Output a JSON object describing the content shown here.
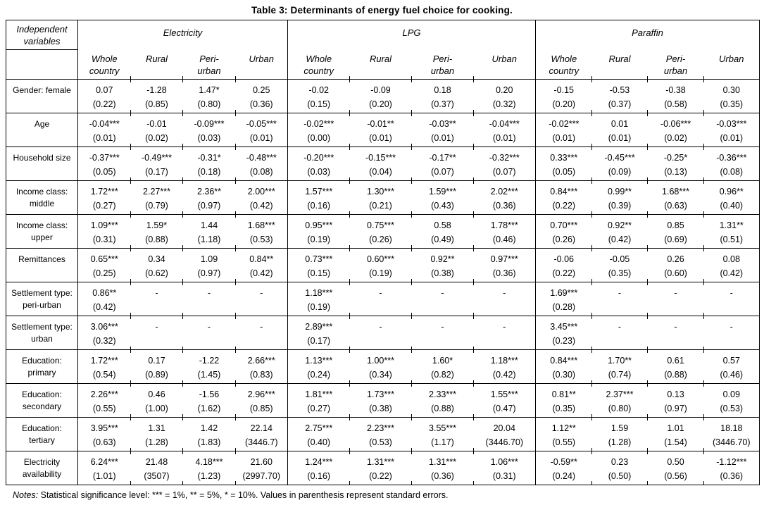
{
  "title": "Table 3: Determinants of energy fuel choice for cooking.",
  "header": {
    "row_label": "Independent\nvariables",
    "groups": [
      {
        "label": "Electricity",
        "columns": [
          "Whole\ncountry",
          "Rural",
          "Peri-\nurban",
          "Urban"
        ]
      },
      {
        "label": "LPG",
        "columns": [
          "Whole\ncountry",
          "Rural",
          "Peri-\nurban",
          "Urban"
        ]
      },
      {
        "label": "Paraffin",
        "columns": [
          "Whole\ncountry",
          "Rural",
          "Peri-\nurban",
          "Urban"
        ]
      }
    ]
  },
  "rows": [
    {
      "label": "Gender: female",
      "cells": [
        [
          "0.07",
          "(0.22)"
        ],
        [
          "-1.28",
          "(0.85)"
        ],
        [
          "1.47*",
          "(0.80)"
        ],
        [
          "0.25",
          "(0.36)"
        ],
        [
          "-0.02",
          "(0.15)"
        ],
        [
          "-0.09",
          "(0.20)"
        ],
        [
          "0.18",
          "(0.37)"
        ],
        [
          "0.20",
          "(0.32)"
        ],
        [
          "-0.15",
          "(0.20)"
        ],
        [
          "-0.53",
          "(0.37)"
        ],
        [
          "-0.38",
          "(0.58)"
        ],
        [
          "0.30",
          "(0.35)"
        ]
      ]
    },
    {
      "label": "Age",
      "cells": [
        [
          "-0.04***",
          "(0.01)"
        ],
        [
          "-0.01",
          "(0.02)"
        ],
        [
          "-0.09***",
          "(0.03)"
        ],
        [
          "-0.05***",
          "(0.01)"
        ],
        [
          "-0.02***",
          "(0.00)"
        ],
        [
          "-0.01**",
          "(0.01)"
        ],
        [
          "-0.03**",
          "(0.01)"
        ],
        [
          "-0.04***",
          "(0.01)"
        ],
        [
          "-0.02***",
          "(0.01)"
        ],
        [
          "0.01",
          "(0.01)"
        ],
        [
          "-0.06***",
          "(0.02)"
        ],
        [
          "-0.03***",
          "(0.01)"
        ]
      ]
    },
    {
      "label": "Household size",
      "cells": [
        [
          "-0.37***",
          "(0.05)"
        ],
        [
          "-0.49***",
          "(0.17)"
        ],
        [
          "-0.31*",
          "(0.18)"
        ],
        [
          "-0.48***",
          "(0.08)"
        ],
        [
          "-0.20***",
          "(0.03)"
        ],
        [
          "-0.15***",
          "(0.04)"
        ],
        [
          "-0.17**",
          "(0.07)"
        ],
        [
          "-0.32***",
          "(0.07)"
        ],
        [
          "0.33***",
          "(0.05)"
        ],
        [
          "-0.45***",
          "(0.09)"
        ],
        [
          "-0.25*",
          "(0.13)"
        ],
        [
          "-0.36***",
          "(0.08)"
        ]
      ]
    },
    {
      "label": "Income class:\nmiddle",
      "cells": [
        [
          "1.72***",
          "(0.27)"
        ],
        [
          "2.27***",
          "(0.79)"
        ],
        [
          "2.36**",
          "(0.97)"
        ],
        [
          "2.00***",
          "(0.42)"
        ],
        [
          "1.57***",
          "(0.16)"
        ],
        [
          "1.30***",
          "(0.21)"
        ],
        [
          "1.59***",
          "(0.43)"
        ],
        [
          "2.02***",
          "(0.36)"
        ],
        [
          "0.84***",
          "(0.22)"
        ],
        [
          "0.99**",
          "(0.39)"
        ],
        [
          "1.68***",
          "(0.63)"
        ],
        [
          "0.96**",
          "(0.40)"
        ]
      ]
    },
    {
      "label": "Income class:\nupper",
      "cells": [
        [
          "1.09***",
          "(0.31)"
        ],
        [
          "1.59*",
          "(0.88)"
        ],
        [
          "1.44",
          "(1.18)"
        ],
        [
          "1.68***",
          "(0.53)"
        ],
        [
          "0.95***",
          "(0.19)"
        ],
        [
          "0.75***",
          "(0.26)"
        ],
        [
          "0.58",
          "(0.49)"
        ],
        [
          "1.78***",
          "(0.46)"
        ],
        [
          "0.70***",
          "(0.26)"
        ],
        [
          "0.92**",
          "(0.42)"
        ],
        [
          "0.85",
          "(0.69)"
        ],
        [
          "1.31**",
          "(0.51)"
        ]
      ]
    },
    {
      "label": "Remittances",
      "cells": [
        [
          "0.65***",
          "(0.25)"
        ],
        [
          "0.34",
          "(0.62)"
        ],
        [
          "1.09",
          "(0.97)"
        ],
        [
          "0.84**",
          "(0.42)"
        ],
        [
          "0.73***",
          "(0.15)"
        ],
        [
          "0.60***",
          "(0.19)"
        ],
        [
          "0.92**",
          "(0.38)"
        ],
        [
          "0.97***",
          "(0.36)"
        ],
        [
          "-0.06",
          "(0.22)"
        ],
        [
          "-0.05",
          "(0.35)"
        ],
        [
          "0.26",
          "(0.60)"
        ],
        [
          "0.08",
          "(0.42)"
        ]
      ]
    },
    {
      "label": "Settlement type:\nperi-urban",
      "cells": [
        [
          "0.86**",
          "(0.42)"
        ],
        [
          "-",
          ""
        ],
        [
          "-",
          ""
        ],
        [
          "-",
          ""
        ],
        [
          "1.18***",
          "(0.19)"
        ],
        [
          "-",
          ""
        ],
        [
          "-",
          ""
        ],
        [
          "-",
          ""
        ],
        [
          "1.69***",
          "(0.28)"
        ],
        [
          "-",
          ""
        ],
        [
          "-",
          ""
        ],
        [
          "-",
          ""
        ]
      ]
    },
    {
      "label": "Settlement type:\nurban",
      "cells": [
        [
          "3.06***",
          "(0.32)"
        ],
        [
          "-",
          ""
        ],
        [
          "-",
          ""
        ],
        [
          "-",
          ""
        ],
        [
          "2.89***",
          "(0.17)"
        ],
        [
          "-",
          ""
        ],
        [
          "-",
          ""
        ],
        [
          "-",
          ""
        ],
        [
          "3.45***",
          "(0.23)"
        ],
        [
          "-",
          ""
        ],
        [
          "-",
          ""
        ],
        [
          "-",
          ""
        ]
      ]
    },
    {
      "label": "Education:\nprimary",
      "cells": [
        [
          "1.72***",
          "(0.54)"
        ],
        [
          "0.17",
          "(0.89)"
        ],
        [
          "-1.22",
          "(1.45)"
        ],
        [
          "2.66***",
          "(0.83)"
        ],
        [
          "1.13***",
          "(0.24)"
        ],
        [
          "1.00***",
          "(0.34)"
        ],
        [
          "1.60*",
          "(0.82)"
        ],
        [
          "1.18***",
          "(0.42)"
        ],
        [
          "0.84***",
          "(0.30)"
        ],
        [
          "1.70**",
          "(0.74)"
        ],
        [
          "0.61",
          "(0.88)"
        ],
        [
          "0.57",
          "(0.46)"
        ]
      ]
    },
    {
      "label": "Education:\nsecondary",
      "cells": [
        [
          "2.26***",
          "(0.55)"
        ],
        [
          "0.46",
          "(1.00)"
        ],
        [
          "-1.56",
          "(1.62)"
        ],
        [
          "2.96***",
          "(0.85)"
        ],
        [
          "1.81***",
          "(0.27)"
        ],
        [
          "1.73***",
          "(0.38)"
        ],
        [
          "2.33***",
          "(0.88)"
        ],
        [
          "1.55***",
          "(0.47)"
        ],
        [
          "0.81**",
          "(0.35)"
        ],
        [
          "2.37***",
          "(0.80)"
        ],
        [
          "0.13",
          "(0.97)"
        ],
        [
          "0.09",
          "(0.53)"
        ]
      ]
    },
    {
      "label": "Education:\ntertiary",
      "cells": [
        [
          "3.95***",
          "(0.63)"
        ],
        [
          "1.31",
          "(1.28)"
        ],
        [
          "1.42",
          "(1.83)"
        ],
        [
          "22.14",
          "(3446.7)"
        ],
        [
          "2.75***",
          "(0.40)"
        ],
        [
          "2.23***",
          "(0.53)"
        ],
        [
          "3.55***",
          "(1.17)"
        ],
        [
          "20.04",
          "(3446.70)"
        ],
        [
          "1.12**",
          "(0.55)"
        ],
        [
          "1.59",
          "(1.28)"
        ],
        [
          "1.01",
          "(1.54)"
        ],
        [
          "18.18",
          "(3446.70)"
        ]
      ]
    },
    {
      "label": "Electricity\navailability",
      "cells": [
        [
          "6.24***",
          "(1.01)"
        ],
        [
          "21.48",
          "(3507)"
        ],
        [
          "4.18***",
          "(1.23)"
        ],
        [
          "21.60",
          "(2997.70)"
        ],
        [
          "1.24***",
          "(0.16)"
        ],
        [
          "1.31***",
          "(0.22)"
        ],
        [
          "1.31***",
          "(0.36)"
        ],
        [
          "1.06***",
          "(0.31)"
        ],
        [
          "-0.59**",
          "(0.24)"
        ],
        [
          "0.23",
          "(0.50)"
        ],
        [
          "0.50",
          "(0.56)"
        ],
        [
          "-1.12***",
          "(0.36)"
        ]
      ]
    }
  ],
  "notes": {
    "label": "Notes:",
    "text": " Statistical significance level: *** = 1%, ** = 5%, * = 10%. Values in parenthesis represent standard errors."
  },
  "colors": {
    "text": "#000000",
    "border": "#000000",
    "background": "#ffffff"
  }
}
